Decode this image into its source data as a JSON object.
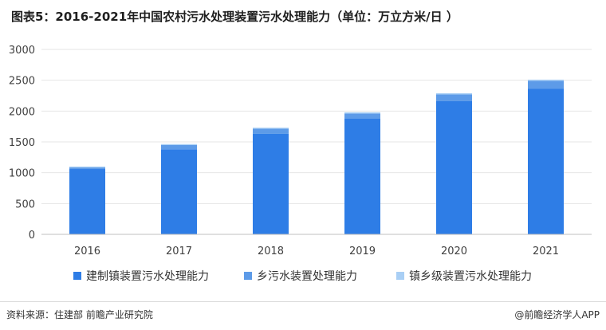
{
  "title": "图表5：2016-2021年中国农村污水处理装置污水处理能力（单位：万立方米/日 ）",
  "source": "资料来源：住建部 前瞻产业研究院",
  "brand": "@前瞻经济学人APP",
  "colors": {
    "series1": "#2e7de6",
    "series2": "#5d9be8",
    "series3": "#a9cff5",
    "axis": "#bfbfbf",
    "grid": "#e6e6e6"
  },
  "chart_data": {
    "type": "bar",
    "stacked": true,
    "categories": [
      "2016",
      "2017",
      "2018",
      "2019",
      "2020",
      "2021"
    ],
    "series": [
      {
        "name": "建制镇装置污水处理能力",
        "values": [
          1060,
          1380,
          1630,
          1880,
          2160,
          2360
        ]
      },
      {
        "name": "乡污水装置处理能力",
        "values": [
          25,
          70,
          85,
          80,
          110,
          130
        ]
      },
      {
        "name": "镇乡级装置污水处理能力",
        "values": [
          15,
          15,
          15,
          20,
          20,
          20
        ]
      }
    ],
    "ylim": [
      0,
      3000
    ],
    "yticks": [
      0,
      500,
      1000,
      1500,
      2000,
      2500,
      3000
    ],
    "grid": true,
    "legend": "bottom"
  }
}
